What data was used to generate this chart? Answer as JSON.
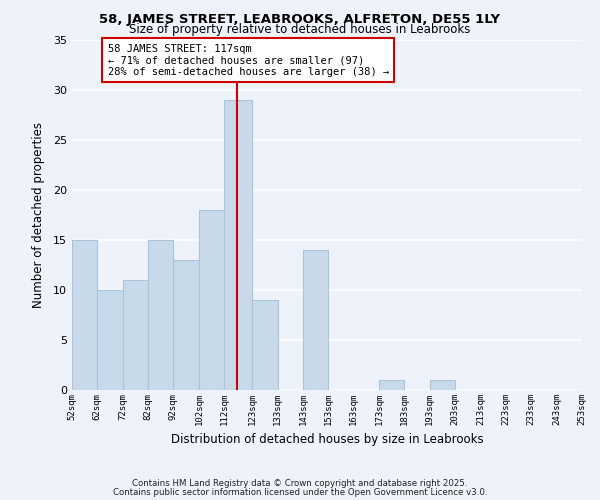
{
  "title": "58, JAMES STREET, LEABROOKS, ALFRETON, DE55 1LY",
  "subtitle": "Size of property relative to detached houses in Leabrooks",
  "xlabel": "Distribution of detached houses by size in Leabrooks",
  "ylabel": "Number of detached properties",
  "bar_color": "#c8daea",
  "bar_edge_color": "#a8c4d8",
  "background_color": "#eef2fa",
  "grid_color": "#ffffff",
  "property_line_x": 117,
  "property_line_color": "#cc0000",
  "annotation_title": "58 JAMES STREET: 117sqm",
  "annotation_line1": "← 71% of detached houses are smaller (97)",
  "annotation_line2": "28% of semi-detached houses are larger (38) →",
  "bin_edges": [
    52,
    62,
    72,
    82,
    92,
    102,
    112,
    123,
    133,
    143,
    153,
    163,
    173,
    183,
    193,
    203,
    213,
    223,
    233,
    243,
    253
  ],
  "bin_counts": [
    15,
    10,
    11,
    15,
    13,
    18,
    29,
    9,
    0,
    14,
    0,
    0,
    1,
    0,
    1,
    0,
    0,
    0,
    0,
    0
  ],
  "ylim": [
    0,
    35
  ],
  "yticks": [
    0,
    5,
    10,
    15,
    20,
    25,
    30,
    35
  ],
  "footnote1": "Contains HM Land Registry data © Crown copyright and database right 2025.",
  "footnote2": "Contains public sector information licensed under the Open Government Licence v3.0."
}
